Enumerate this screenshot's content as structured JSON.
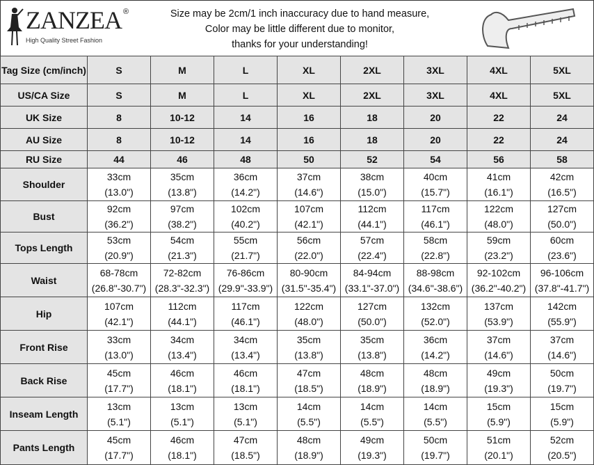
{
  "brand": {
    "name": "ZANZEA",
    "tagline": "High Quality Street Fashion",
    "registered": "®"
  },
  "notice": [
    "Size may be 2cm/1 inch inaccuracy due to hand measure,",
    "Color may be little different due to monitor,",
    "thanks for your understanding!"
  ],
  "icons": {
    "logo": "woman-silhouette-icon",
    "measure": "tape-measure-icon"
  },
  "size_rows": [
    {
      "label": "Tag Size (cm/inch)",
      "values": [
        "S",
        "M",
        "L",
        "XL",
        "2XL",
        "3XL",
        "4XL",
        "5XL"
      ]
    },
    {
      "label": "US/CA Size",
      "values": [
        "S",
        "M",
        "L",
        "XL",
        "2XL",
        "3XL",
        "4XL",
        "5XL"
      ]
    },
    {
      "label": "UK Size",
      "values": [
        "8",
        "10-12",
        "14",
        "16",
        "18",
        "20",
        "22",
        "24"
      ]
    },
    {
      "label": "AU Size",
      "values": [
        "8",
        "10-12",
        "14",
        "16",
        "18",
        "20",
        "22",
        "24"
      ]
    },
    {
      "label": "RU Size",
      "values": [
        "44",
        "46",
        "48",
        "50",
        "52",
        "54",
        "56",
        "58"
      ]
    }
  ],
  "measure_rows": [
    {
      "label": "Shoulder",
      "cm": [
        "33cm",
        "35cm",
        "36cm",
        "37cm",
        "38cm",
        "40cm",
        "41cm",
        "42cm"
      ],
      "inch": [
        "(13.0\")",
        "(13.8\")",
        "(14.2\")",
        "(14.6\")",
        "(15.0\")",
        "(15.7\")",
        "(16.1\")",
        "(16.5\")"
      ]
    },
    {
      "label": "Bust",
      "cm": [
        "92cm",
        "97cm",
        "102cm",
        "107cm",
        "112cm",
        "117cm",
        "122cm",
        "127cm"
      ],
      "inch": [
        "(36.2\")",
        "(38.2\")",
        "(40.2\")",
        "(42.1\")",
        "(44.1\")",
        "(46.1\")",
        "(48.0\")",
        "(50.0\")"
      ]
    },
    {
      "label": "Tops Length",
      "cm": [
        "53cm",
        "54cm",
        "55cm",
        "56cm",
        "57cm",
        "58cm",
        "59cm",
        "60cm"
      ],
      "inch": [
        "(20.9\")",
        "(21.3\")",
        "(21.7\")",
        "(22.0\")",
        "(22.4\")",
        "(22.8\")",
        "(23.2\")",
        "(23.6\")"
      ]
    },
    {
      "label": "Waist",
      "cm": [
        "68-78cm",
        "72-82cm",
        "76-86cm",
        "80-90cm",
        "84-94cm",
        "88-98cm",
        "92-102cm",
        "96-106cm"
      ],
      "inch": [
        "(26.8\"-30.7\")",
        "(28.3\"-32.3\")",
        "(29.9\"-33.9\")",
        "(31.5\"-35.4\")",
        "(33.1\"-37.0\")",
        "(34.6\"-38.6\")",
        "(36.2\"-40.2\")",
        "(37.8\"-41.7\")"
      ]
    },
    {
      "label": "Hip",
      "cm": [
        "107cm",
        "112cm",
        "117cm",
        "122cm",
        "127cm",
        "132cm",
        "137cm",
        "142cm"
      ],
      "inch": [
        "(42.1\")",
        "(44.1\")",
        "(46.1\")",
        "(48.0\")",
        "(50.0\")",
        "(52.0\")",
        "(53.9\")",
        "(55.9\")"
      ]
    },
    {
      "label": "Front Rise",
      "cm": [
        "33cm",
        "34cm",
        "34cm",
        "35cm",
        "35cm",
        "36cm",
        "37cm",
        "37cm"
      ],
      "inch": [
        "(13.0\")",
        "(13.4\")",
        "(13.4\")",
        "(13.8\")",
        "(13.8\")",
        "(14.2\")",
        "(14.6\")",
        "(14.6\")"
      ]
    },
    {
      "label": "Back Rise",
      "cm": [
        "45cm",
        "46cm",
        "46cm",
        "47cm",
        "48cm",
        "48cm",
        "49cm",
        "50cm"
      ],
      "inch": [
        "(17.7\")",
        "(18.1\")",
        "(18.1\")",
        "(18.5\")",
        "(18.9\")",
        "(18.9\")",
        "(19.3\")",
        "(19.7\")"
      ]
    },
    {
      "label": "Inseam Length",
      "cm": [
        "13cm",
        "13cm",
        "13cm",
        "14cm",
        "14cm",
        "14cm",
        "15cm",
        "15cm"
      ],
      "inch": [
        "(5.1\")",
        "(5.1\")",
        "(5.1\")",
        "(5.5\")",
        "(5.5\")",
        "(5.5\")",
        "(5.9\")",
        "(5.9\")"
      ]
    },
    {
      "label": "Pants Length",
      "cm": [
        "45cm",
        "46cm",
        "47cm",
        "48cm",
        "49cm",
        "50cm",
        "51cm",
        "52cm"
      ],
      "inch": [
        "(17.7\")",
        "(18.1\")",
        "(18.5\")",
        "(18.9\")",
        "(19.3\")",
        "(19.7\")",
        "(20.1\")",
        "(20.5\")"
      ]
    }
  ]
}
